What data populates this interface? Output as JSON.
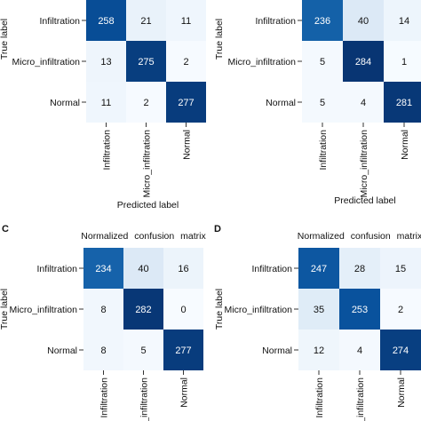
{
  "chart_data": [
    {
      "type": "heatmap",
      "panel_letter": "",
      "title": "",
      "xlabel": "Predicted label",
      "ylabel": "True label",
      "row_labels": [
        "Infiltration",
        "Micro_infiltration",
        "Normal"
      ],
      "col_labels": [
        "Infiltration",
        "Micro_infiltration",
        "Normal"
      ],
      "values": [
        [
          258,
          21,
          11
        ],
        [
          13,
          275,
          2
        ],
        [
          11,
          2,
          277
        ]
      ]
    },
    {
      "type": "heatmap",
      "panel_letter": "",
      "title": "",
      "xlabel": "Predicted label",
      "ylabel": "True label",
      "row_labels": [
        "Infiltration",
        "Micro_infiltration",
        "Normal"
      ],
      "col_labels": [
        "Infiltration",
        "Micro_infiltration",
        "Normal"
      ],
      "values": [
        [
          236,
          40,
          14
        ],
        [
          5,
          284,
          1
        ],
        [
          5,
          4,
          281
        ]
      ]
    },
    {
      "type": "heatmap",
      "panel_letter": "C",
      "title": "Normalized confusion matrix",
      "xlabel": "",
      "ylabel": "True label",
      "row_labels": [
        "Infiltration",
        "Micro_infiltration",
        "Normal"
      ],
      "col_labels": [
        "Infiltration",
        "o_infiltration",
        "Normal"
      ],
      "values": [
        [
          234,
          40,
          16
        ],
        [
          8,
          282,
          0
        ],
        [
          8,
          5,
          277
        ]
      ]
    },
    {
      "type": "heatmap",
      "panel_letter": "D",
      "title": "Normalized confusion matrix",
      "xlabel": "",
      "ylabel": "True label",
      "row_labels": [
        "Infiltration",
        "Micro_infiltration",
        "Normal"
      ],
      "col_labels": [
        "Infiltration",
        "o_infiltration",
        "Normal"
      ],
      "values": [
        [
          247,
          28,
          15
        ],
        [
          35,
          253,
          2
        ],
        [
          12,
          4,
          274
        ]
      ]
    }
  ],
  "colors": {
    "low": "#f7fbff",
    "high": "#08306b",
    "text_dark": "#111111",
    "text_light": "#ffffff"
  },
  "value_range": [
    0,
    290
  ]
}
